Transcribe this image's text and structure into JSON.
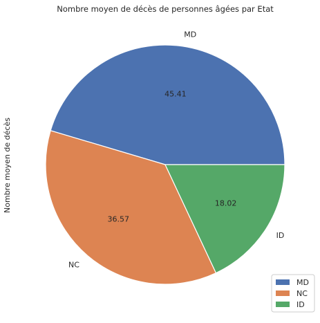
{
  "chart_data": {
    "type": "pie",
    "title": "Nombre moyen de décès de personnes âgées par Etat",
    "ylabel": "Nombre moyen de décès",
    "categories": [
      "MD",
      "NC",
      "ID"
    ],
    "values": [
      45.41,
      36.57,
      18.02
    ],
    "data_labels": [
      "45.41",
      "36.57",
      "18.02"
    ],
    "colors": [
      "#4c72b0",
      "#dd8452",
      "#55a868"
    ],
    "start_angle_deg": 0,
    "direction": "counterclockwise",
    "edge_color": "#ffffff",
    "legend": {
      "placement": "bottom-right",
      "entries": [
        "MD",
        "NC",
        "ID"
      ]
    }
  }
}
